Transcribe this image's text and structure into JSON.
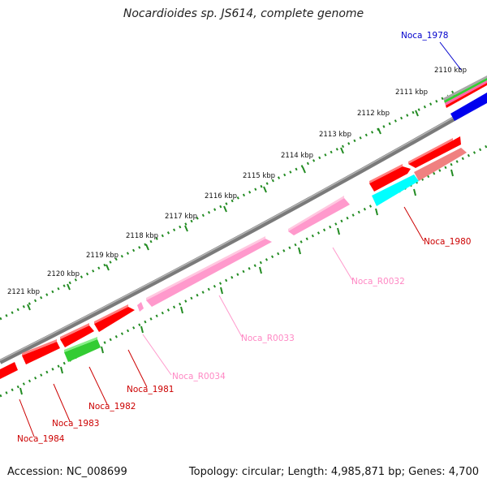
{
  "title": "Nocardioides sp. JS614, complete genome",
  "footer": {
    "accession": "Accession: NC_008699",
    "topology": "Topology: circular; Length: 4,985,871 bp; Genes: 4,700"
  },
  "ticks": [
    "2110 kbp",
    "2111 kbp",
    "2112 kbp",
    "2113 kbp",
    "2114 kbp",
    "2115 kbp",
    "2116 kbp",
    "2117 kbp",
    "2118 kbp",
    "2119 kbp",
    "2120 kbp",
    "2121 kbp"
  ],
  "colors": {
    "cds": "#ff0000",
    "cds_light": "#f08080",
    "rna": "#ff99cc",
    "green": "#33cc33",
    "cyan": "#00ffff",
    "blue": "#0000ee",
    "backbone": "#808080",
    "dotted": "#228b22"
  },
  "genes": [
    {
      "name": "Noca_1978",
      "color": "#0000cc"
    },
    {
      "name": "Noca_1980",
      "color": "#cc0000"
    },
    {
      "name": "Noca_R0032",
      "color": "#ff88c4"
    },
    {
      "name": "Noca_R0033",
      "color": "#ff88c4"
    },
    {
      "name": "Noca_R0034",
      "color": "#ff88c4"
    },
    {
      "name": "Noca_1981",
      "color": "#cc0000"
    },
    {
      "name": "Noca_1982",
      "color": "#cc0000"
    },
    {
      "name": "Noca_1983",
      "color": "#cc0000"
    },
    {
      "name": "Noca_1984",
      "color": "#cc0000"
    }
  ]
}
